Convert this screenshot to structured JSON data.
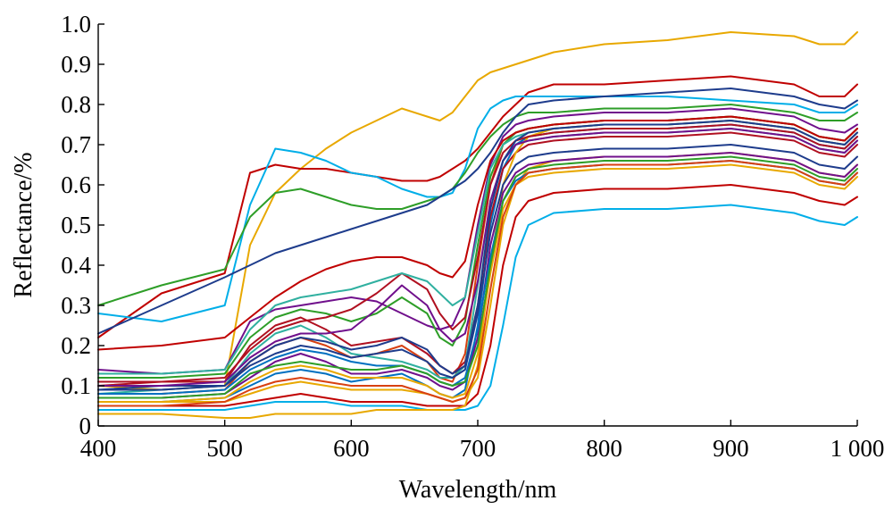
{
  "chart_data": {
    "type": "line",
    "title": "",
    "xlabel": "Wavelength/nm",
    "ylabel": "Reflectance/%",
    "xlim": [
      400,
      1000
    ],
    "ylim": [
      0,
      1.0
    ],
    "x_ticks": [
      400,
      500,
      600,
      700,
      800,
      900,
      1000
    ],
    "x_tick_labels": [
      "400",
      "500",
      "600",
      "700",
      "800",
      "900",
      "1 000"
    ],
    "y_ticks": [
      0,
      0.1,
      0.2,
      0.3,
      0.4,
      0.5,
      0.6,
      0.7,
      0.8,
      0.9,
      1.0
    ],
    "y_tick_labels": [
      "0",
      "0.1",
      "0.2",
      "0.3",
      "0.4",
      "0.5",
      "0.6",
      "0.7",
      "0.8",
      "0.9",
      "1.0"
    ],
    "grid": false,
    "legend": "none",
    "colors": [
      "#e8a800",
      "#c00000",
      "#00aee8",
      "#2e9e28",
      "#1e3c8c",
      "#70108c",
      "#d84010",
      "#0070c0",
      "#b01020",
      "#30b0a0"
    ],
    "x": [
      400,
      450,
      500,
      520,
      540,
      560,
      580,
      600,
      620,
      640,
      660,
      670,
      680,
      690,
      700,
      710,
      720,
      730,
      740,
      760,
      800,
      850,
      900,
      950,
      970,
      990,
      1000
    ],
    "series": [
      {
        "values": [
          0.1,
          0.09,
          0.1,
          0.45,
          0.58,
          0.64,
          0.69,
          0.73,
          0.76,
          0.79,
          0.77,
          0.76,
          0.78,
          0.82,
          0.86,
          0.88,
          0.89,
          0.9,
          0.91,
          0.93,
          0.95,
          0.96,
          0.98,
          0.97,
          0.95,
          0.95,
          0.98
        ],
        "color": "#e8a800"
      },
      {
        "values": [
          0.22,
          0.33,
          0.38,
          0.63,
          0.65,
          0.64,
          0.64,
          0.63,
          0.62,
          0.61,
          0.61,
          0.62,
          0.64,
          0.66,
          0.69,
          0.73,
          0.77,
          0.8,
          0.83,
          0.85,
          0.85,
          0.86,
          0.87,
          0.85,
          0.82,
          0.82,
          0.85
        ],
        "color": "#c00000"
      },
      {
        "values": [
          0.28,
          0.26,
          0.3,
          0.55,
          0.69,
          0.68,
          0.66,
          0.63,
          0.62,
          0.59,
          0.57,
          0.57,
          0.58,
          0.64,
          0.74,
          0.79,
          0.81,
          0.82,
          0.82,
          0.82,
          0.82,
          0.82,
          0.81,
          0.8,
          0.78,
          0.78,
          0.8
        ],
        "color": "#00aee8"
      },
      {
        "values": [
          0.3,
          0.35,
          0.39,
          0.52,
          0.58,
          0.59,
          0.57,
          0.55,
          0.54,
          0.54,
          0.56,
          0.57,
          0.59,
          0.63,
          0.68,
          0.72,
          0.75,
          0.77,
          0.78,
          0.78,
          0.79,
          0.79,
          0.8,
          0.78,
          0.76,
          0.76,
          0.78
        ],
        "color": "#2e9e28"
      },
      {
        "values": [
          0.23,
          0.3,
          0.37,
          0.4,
          0.43,
          0.45,
          0.47,
          0.49,
          0.51,
          0.53,
          0.55,
          0.57,
          0.59,
          0.61,
          0.64,
          0.68,
          0.73,
          0.77,
          0.8,
          0.81,
          0.82,
          0.83,
          0.84,
          0.82,
          0.8,
          0.79,
          0.81
        ],
        "color": "#1e3c8c"
      },
      {
        "values": [
          0.14,
          0.13,
          0.14,
          0.26,
          0.29,
          0.3,
          0.31,
          0.32,
          0.31,
          0.28,
          0.25,
          0.24,
          0.25,
          0.32,
          0.5,
          0.65,
          0.72,
          0.75,
          0.76,
          0.77,
          0.78,
          0.78,
          0.79,
          0.77,
          0.74,
          0.73,
          0.75
        ],
        "color": "#70108c"
      },
      {
        "values": [
          0.08,
          0.08,
          0.09,
          0.16,
          0.2,
          0.22,
          0.2,
          0.17,
          0.18,
          0.2,
          0.16,
          0.12,
          0.11,
          0.18,
          0.4,
          0.6,
          0.7,
          0.73,
          0.74,
          0.75,
          0.76,
          0.76,
          0.77,
          0.75,
          0.72,
          0.71,
          0.74
        ],
        "color": "#d84010"
      },
      {
        "values": [
          0.06,
          0.06,
          0.07,
          0.1,
          0.13,
          0.14,
          0.13,
          0.11,
          0.12,
          0.13,
          0.1,
          0.08,
          0.07,
          0.09,
          0.25,
          0.5,
          0.64,
          0.7,
          0.72,
          0.73,
          0.74,
          0.74,
          0.75,
          0.73,
          0.7,
          0.69,
          0.72
        ],
        "color": "#0070c0"
      },
      {
        "values": [
          0.1,
          0.11,
          0.11,
          0.2,
          0.25,
          0.27,
          0.24,
          0.2,
          0.21,
          0.22,
          0.18,
          0.15,
          0.13,
          0.16,
          0.3,
          0.52,
          0.64,
          0.68,
          0.7,
          0.71,
          0.72,
          0.72,
          0.73,
          0.71,
          0.68,
          0.67,
          0.7
        ],
        "color": "#b01020"
      },
      {
        "values": [
          0.08,
          0.09,
          0.1,
          0.18,
          0.23,
          0.25,
          0.22,
          0.18,
          0.17,
          0.16,
          0.14,
          0.12,
          0.12,
          0.15,
          0.35,
          0.56,
          0.66,
          0.7,
          0.71,
          0.72,
          0.73,
          0.73,
          0.74,
          0.72,
          0.69,
          0.68,
          0.71
        ],
        "color": "#30b0a0"
      },
      {
        "values": [
          0.06,
          0.06,
          0.06,
          0.08,
          0.1,
          0.11,
          0.1,
          0.09,
          0.09,
          0.09,
          0.08,
          0.07,
          0.06,
          0.07,
          0.12,
          0.3,
          0.5,
          0.6,
          0.64,
          0.66,
          0.67,
          0.67,
          0.68,
          0.66,
          0.63,
          0.62,
          0.65
        ],
        "color": "#e8a800"
      },
      {
        "values": [
          0.05,
          0.05,
          0.05,
          0.06,
          0.07,
          0.08,
          0.07,
          0.06,
          0.06,
          0.06,
          0.05,
          0.05,
          0.05,
          0.05,
          0.08,
          0.2,
          0.4,
          0.52,
          0.56,
          0.58,
          0.59,
          0.59,
          0.6,
          0.58,
          0.56,
          0.55,
          0.57
        ],
        "color": "#c00000"
      },
      {
        "values": [
          0.04,
          0.04,
          0.04,
          0.05,
          0.06,
          0.06,
          0.06,
          0.05,
          0.05,
          0.05,
          0.04,
          0.04,
          0.04,
          0.04,
          0.05,
          0.1,
          0.25,
          0.42,
          0.5,
          0.53,
          0.54,
          0.54,
          0.55,
          0.53,
          0.51,
          0.5,
          0.52
        ],
        "color": "#00aee8"
      },
      {
        "values": [
          0.03,
          0.03,
          0.02,
          0.02,
          0.03,
          0.03,
          0.03,
          0.03,
          0.04,
          0.04,
          0.04,
          0.04,
          0.04,
          0.05,
          0.15,
          0.4,
          0.6,
          0.68,
          0.72,
          0.74,
          0.75,
          0.75,
          0.76,
          0.74,
          0.71,
          0.7,
          0.73
        ],
        "color": "#e8a800"
      },
      {
        "values": [
          0.12,
          0.12,
          0.13,
          0.22,
          0.27,
          0.29,
          0.28,
          0.26,
          0.28,
          0.32,
          0.28,
          0.22,
          0.2,
          0.26,
          0.45,
          0.62,
          0.7,
          0.73,
          0.74,
          0.75,
          0.76,
          0.76,
          0.77,
          0.75,
          0.72,
          0.71,
          0.74
        ],
        "color": "#2e9e28"
      },
      {
        "values": [
          0.09,
          0.1,
          0.1,
          0.15,
          0.18,
          0.2,
          0.19,
          0.17,
          0.18,
          0.19,
          0.16,
          0.13,
          0.12,
          0.14,
          0.28,
          0.48,
          0.6,
          0.65,
          0.67,
          0.68,
          0.69,
          0.69,
          0.7,
          0.68,
          0.65,
          0.64,
          0.67
        ],
        "color": "#1e3c8c"
      },
      {
        "values": [
          0.07,
          0.07,
          0.08,
          0.12,
          0.16,
          0.18,
          0.16,
          0.13,
          0.13,
          0.14,
          0.12,
          0.1,
          0.09,
          0.11,
          0.22,
          0.45,
          0.58,
          0.63,
          0.65,
          0.66,
          0.67,
          0.67,
          0.68,
          0.66,
          0.63,
          0.62,
          0.65
        ],
        "color": "#70108c"
      },
      {
        "values": [
          0.11,
          0.11,
          0.12,
          0.19,
          0.24,
          0.26,
          0.27,
          0.29,
          0.33,
          0.38,
          0.34,
          0.28,
          0.24,
          0.27,
          0.42,
          0.6,
          0.68,
          0.71,
          0.72,
          0.73,
          0.74,
          0.74,
          0.75,
          0.73,
          0.7,
          0.69,
          0.72
        ],
        "color": "#b01020"
      },
      {
        "values": [
          0.08,
          0.08,
          0.09,
          0.14,
          0.17,
          0.19,
          0.18,
          0.16,
          0.15,
          0.15,
          0.13,
          0.11,
          0.1,
          0.12,
          0.24,
          0.42,
          0.56,
          0.61,
          0.63,
          0.64,
          0.65,
          0.65,
          0.66,
          0.64,
          0.61,
          0.6,
          0.63
        ],
        "color": "#0070c0"
      },
      {
        "values": [
          0.13,
          0.13,
          0.14,
          0.24,
          0.3,
          0.32,
          0.33,
          0.34,
          0.36,
          0.38,
          0.36,
          0.33,
          0.3,
          0.32,
          0.48,
          0.64,
          0.7,
          0.72,
          0.73,
          0.74,
          0.75,
          0.75,
          0.76,
          0.74,
          0.71,
          0.7,
          0.73
        ],
        "color": "#30b0a0"
      },
      {
        "values": [
          0.19,
          0.2,
          0.22,
          0.27,
          0.32,
          0.36,
          0.39,
          0.41,
          0.42,
          0.42,
          0.4,
          0.38,
          0.37,
          0.41,
          0.55,
          0.66,
          0.71,
          0.73,
          0.74,
          0.75,
          0.76,
          0.76,
          0.77,
          0.75,
          0.72,
          0.71,
          0.74
        ],
        "color": "#c00000"
      },
      {
        "values": [
          0.06,
          0.06,
          0.07,
          0.11,
          0.14,
          0.15,
          0.14,
          0.12,
          0.12,
          0.12,
          0.1,
          0.08,
          0.07,
          0.08,
          0.18,
          0.38,
          0.54,
          0.6,
          0.62,
          0.63,
          0.64,
          0.64,
          0.65,
          0.63,
          0.6,
          0.59,
          0.62
        ],
        "color": "#e8a800"
      },
      {
        "values": [
          0.1,
          0.1,
          0.11,
          0.17,
          0.21,
          0.23,
          0.23,
          0.24,
          0.29,
          0.35,
          0.3,
          0.24,
          0.21,
          0.23,
          0.36,
          0.56,
          0.66,
          0.7,
          0.71,
          0.72,
          0.73,
          0.73,
          0.74,
          0.72,
          0.69,
          0.68,
          0.71
        ],
        "color": "#70108c"
      },
      {
        "values": [
          0.07,
          0.07,
          0.08,
          0.13,
          0.15,
          0.16,
          0.15,
          0.14,
          0.14,
          0.15,
          0.13,
          0.11,
          0.1,
          0.11,
          0.2,
          0.4,
          0.56,
          0.62,
          0.64,
          0.65,
          0.66,
          0.66,
          0.67,
          0.65,
          0.62,
          0.61,
          0.64
        ],
        "color": "#2e9e28"
      },
      {
        "values": [
          0.09,
          0.09,
          0.1,
          0.16,
          0.2,
          0.22,
          0.21,
          0.19,
          0.2,
          0.22,
          0.19,
          0.15,
          0.13,
          0.15,
          0.3,
          0.54,
          0.66,
          0.71,
          0.73,
          0.74,
          0.75,
          0.75,
          0.76,
          0.74,
          0.71,
          0.7,
          0.73
        ],
        "color": "#1e3c8c"
      },
      {
        "values": [
          0.05,
          0.05,
          0.06,
          0.09,
          0.11,
          0.12,
          0.11,
          0.1,
          0.1,
          0.1,
          0.08,
          0.07,
          0.06,
          0.07,
          0.14,
          0.34,
          0.52,
          0.6,
          0.63,
          0.64,
          0.65,
          0.65,
          0.66,
          0.64,
          0.61,
          0.6,
          0.63
        ],
        "color": "#d84010"
      }
    ]
  }
}
